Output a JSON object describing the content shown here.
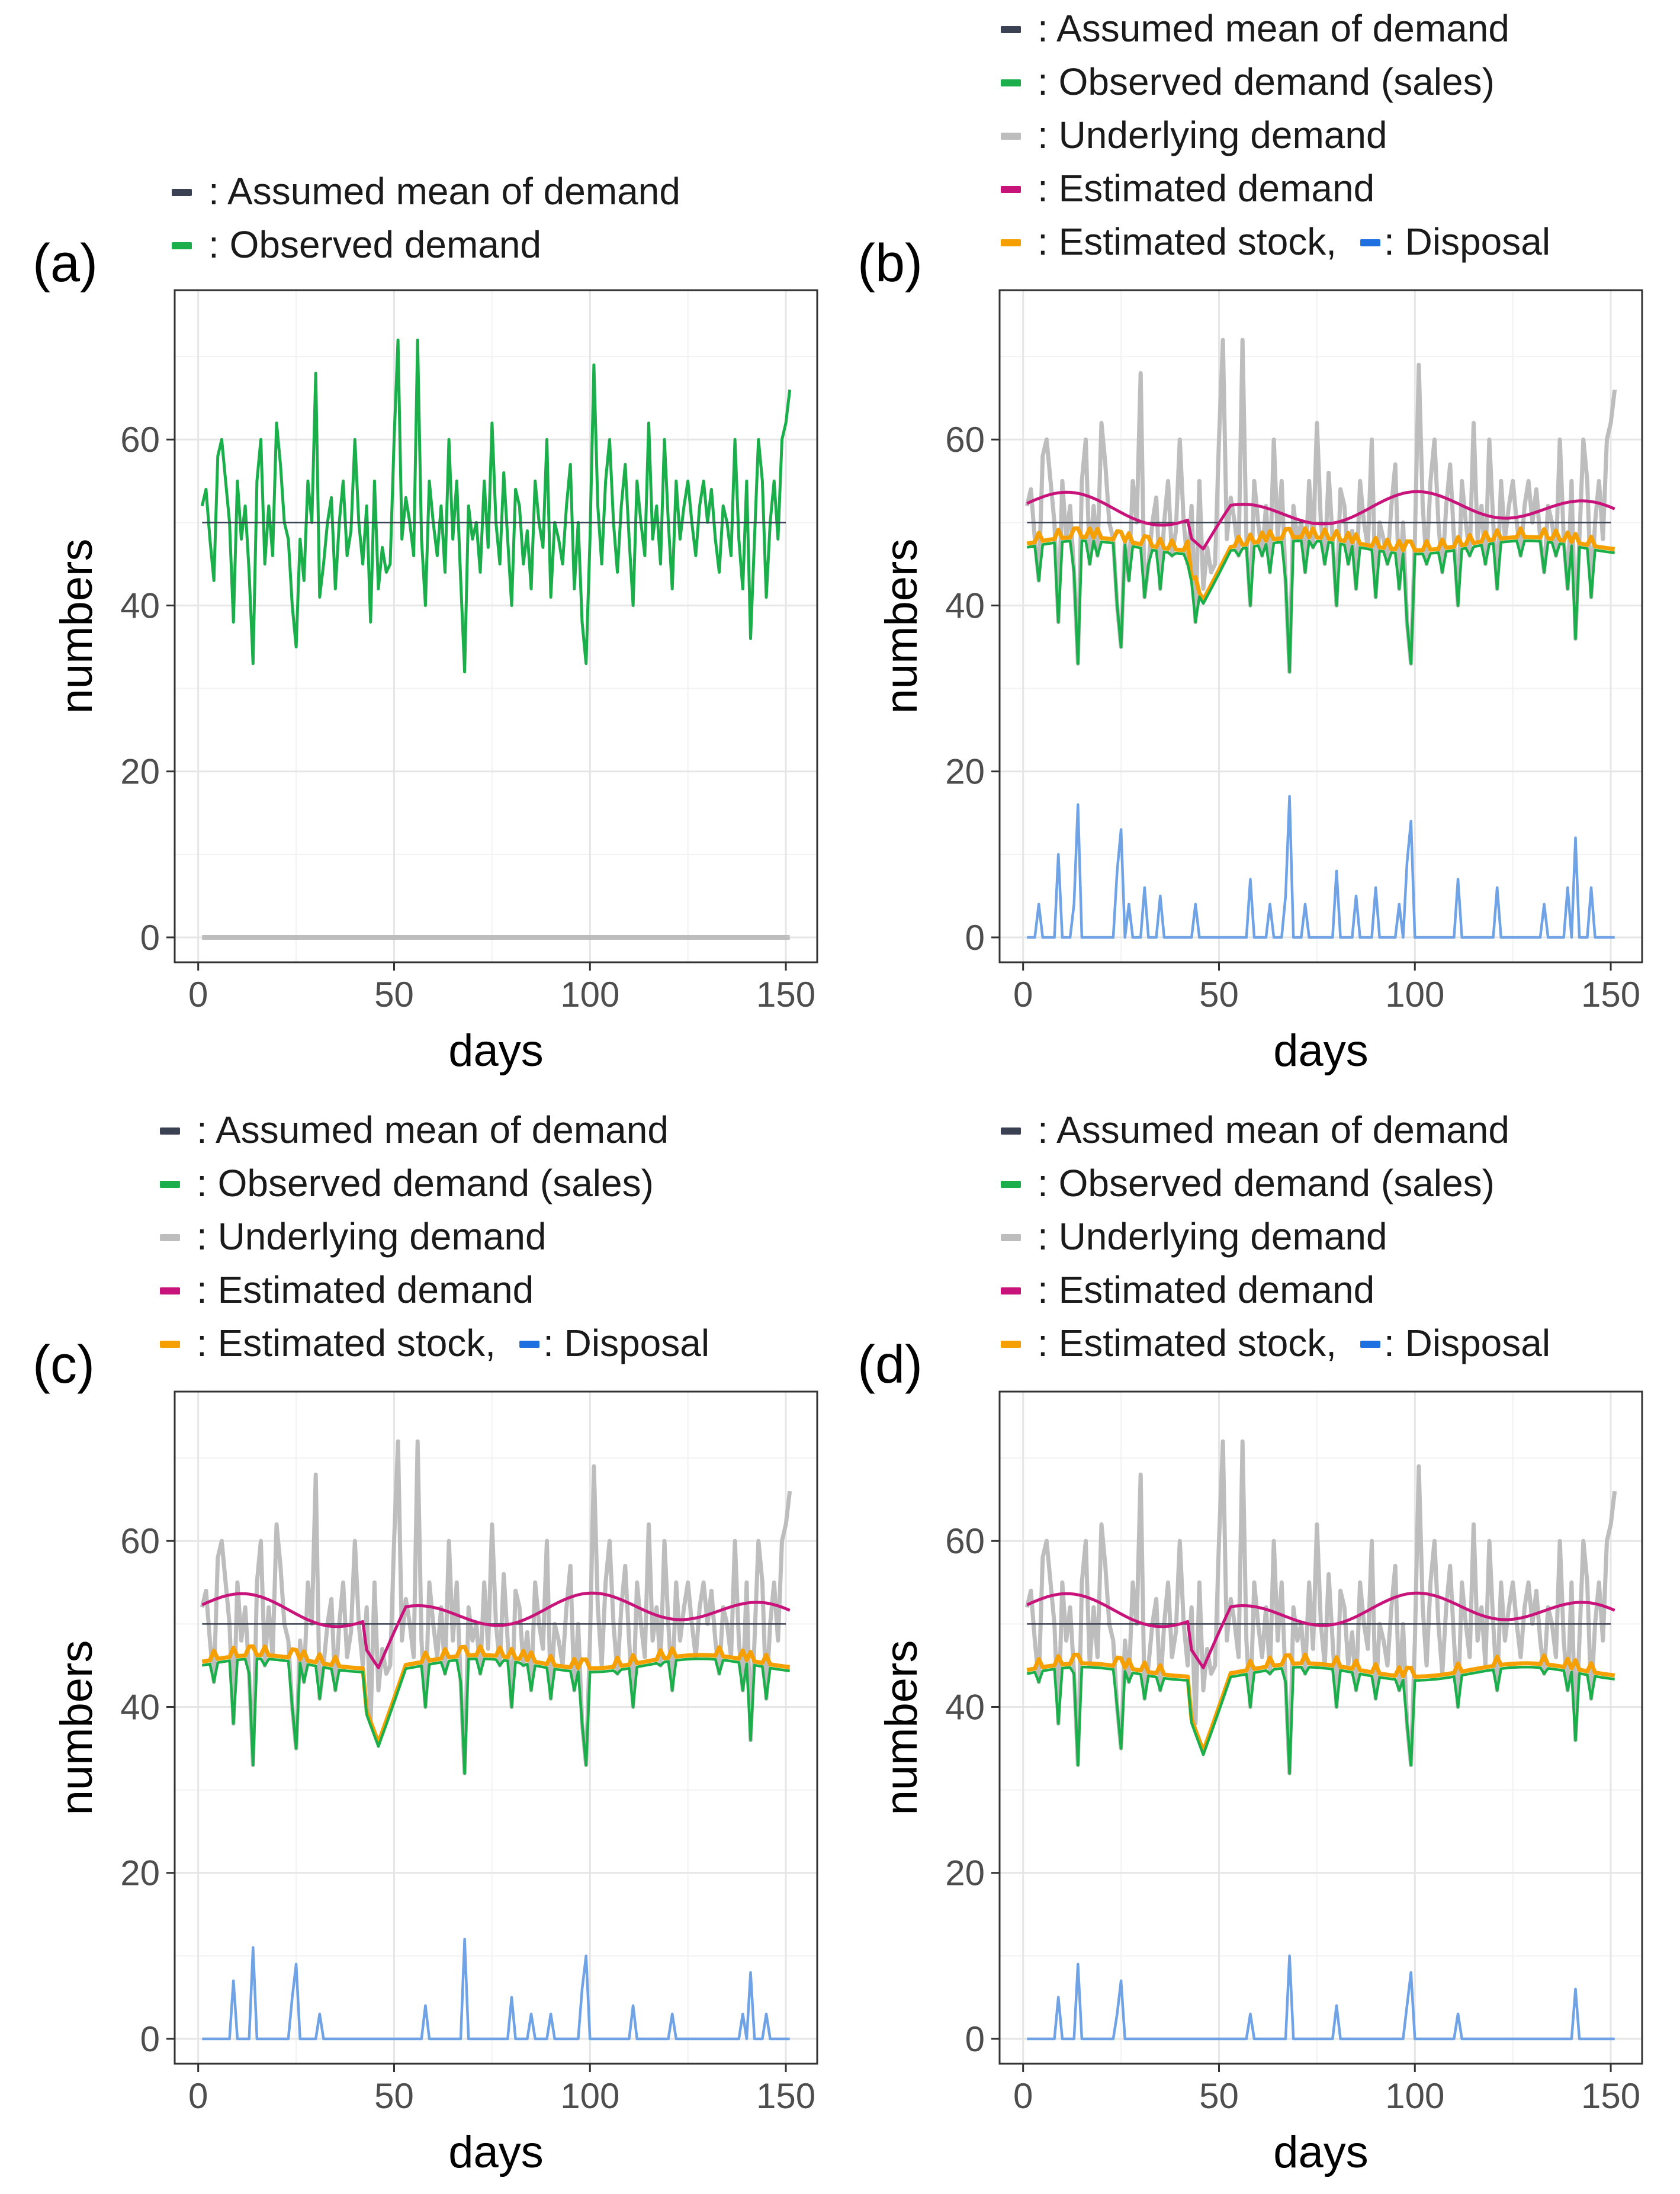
{
  "colors": {
    "mean": "#3a4152",
    "observed": "#1aaf4a",
    "underlying": "#bdbdbd",
    "estimated_demand": "#c8137a",
    "estimated_stock": "#f5a000",
    "disposal": "#6fa3e6",
    "disposal_legend": "#1e6fe0",
    "grid_major": "#e6e6e6",
    "grid_minor": "#f2f2f2"
  },
  "legend_labels": {
    "mean": ": Assumed mean of demand",
    "observed_a": ": Observed demand",
    "observed": ": Observed demand (sales)",
    "underlying": ": Underlying demand",
    "estimated_demand": ": Estimated  demand",
    "estimated_stock": ": Estimated stock,",
    "disposal": ": Disposal"
  },
  "chart_data": [
    {
      "panel": "(a)",
      "type": "line",
      "xlabel": "days",
      "ylabel": "numbers",
      "xlim": [
        0,
        150
      ],
      "ylim": [
        -3,
        78
      ],
      "xticks": [
        0,
        50,
        100,
        150
      ],
      "yticks": [
        0,
        20,
        40,
        60
      ],
      "legend": [
        "mean",
        "observed_a"
      ],
      "series": {
        "mean": 50,
        "observed": [
          52,
          54,
          48,
          43,
          58,
          60,
          55,
          50,
          38,
          55,
          48,
          52,
          44,
          33,
          55,
          60,
          45,
          52,
          46,
          62,
          57,
          50,
          48,
          40,
          35,
          48,
          43,
          55,
          50,
          68,
          41,
          45,
          50,
          53,
          42,
          50,
          55,
          46,
          49,
          60,
          50,
          45,
          52,
          38,
          55,
          42,
          47,
          44,
          45,
          60,
          72,
          48,
          53,
          50,
          46,
          72,
          48,
          40,
          55,
          50,
          46,
          52,
          44,
          60,
          48,
          55,
          43,
          32,
          52,
          48,
          50,
          44,
          55,
          47,
          62,
          50,
          45,
          56,
          48,
          40,
          54,
          52,
          45,
          49,
          42,
          55,
          50,
          47,
          60,
          41,
          50,
          48,
          45,
          52,
          57,
          42,
          50,
          38,
          33,
          48,
          69,
          52,
          45,
          55,
          60,
          50,
          44,
          52,
          57,
          48,
          40,
          55,
          50,
          46,
          62,
          48,
          52,
          45,
          60,
          50,
          42,
          55,
          48,
          52,
          55,
          50,
          46,
          52,
          55,
          50,
          54,
          48,
          44,
          52,
          50,
          46,
          60,
          48,
          42,
          55,
          36,
          48,
          60,
          55,
          41,
          50,
          55,
          48,
          60,
          62,
          66
        ]
      }
    },
    {
      "panel": "(b)",
      "type": "line",
      "xlabel": "days",
      "ylabel": "numbers",
      "xlim": [
        0,
        150
      ],
      "ylim": [
        -3,
        78
      ],
      "xticks": [
        0,
        50,
        100,
        150
      ],
      "yticks": [
        0,
        20,
        40,
        60
      ],
      "legend": [
        "mean",
        "observed",
        "underlying",
        "estimated_demand",
        "estimated_stock",
        "disposal"
      ],
      "cap_base": 47,
      "disposal_scale": 1.0,
      "stock_offset": 1.5,
      "dip_depth": 6,
      "series": {
        "mean": 50,
        "est_base": 51.5
      }
    },
    {
      "panel": "(c)",
      "type": "line",
      "xlabel": "days",
      "ylabel": "numbers",
      "xlim": [
        0,
        150
      ],
      "ylim": [
        -3,
        78
      ],
      "xticks": [
        0,
        50,
        100,
        150
      ],
      "yticks": [
        0,
        20,
        40,
        60
      ],
      "legend": [
        "mean",
        "observed",
        "underlying",
        "estimated_demand",
        "estimated_stock",
        "disposal"
      ],
      "cap_base": 45,
      "disposal_scale": 0.85,
      "stock_offset": 1.5,
      "dip_depth": 9,
      "series": {
        "mean": 50,
        "est_base": 51.5
      }
    },
    {
      "panel": "(d)",
      "type": "line",
      "xlabel": "days",
      "ylabel": "numbers",
      "xlim": [
        0,
        150
      ],
      "ylim": [
        -3,
        78
      ],
      "xticks": [
        0,
        50,
        100,
        150
      ],
      "yticks": [
        0,
        20,
        40,
        60
      ],
      "legend": [
        "mean",
        "observed",
        "underlying",
        "estimated_demand",
        "estimated_stock",
        "disposal"
      ],
      "cap_base": 44,
      "disposal_scale": 0.75,
      "stock_offset": 1.5,
      "dip_depth": 9,
      "series": {
        "mean": 50,
        "est_base": 51.5
      }
    }
  ]
}
